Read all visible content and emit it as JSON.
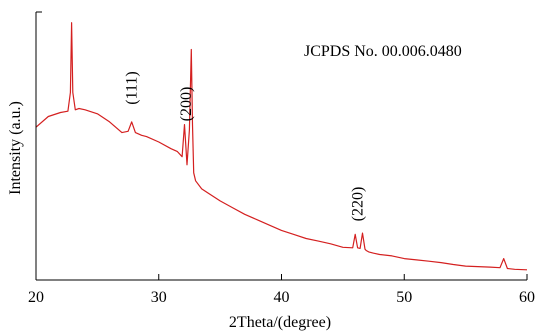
{
  "chart_data": {
    "type": "line",
    "title": "",
    "xlabel": "2Theta/(degree)",
    "ylabel": "Intensity (a.u.)",
    "xlim": [
      20,
      60
    ],
    "ylim": [
      0,
      100
    ],
    "xticks": [
      "20",
      "30",
      "40",
      "50",
      "60"
    ],
    "grid": false,
    "annotation": "JCPDS No. 00.006.0480",
    "peak_labels": [
      {
        "text": "(111)",
        "x": 27.8
      },
      {
        "text": "(200)",
        "x": 32.2
      },
      {
        "text": "(220)",
        "x": 46.2
      }
    ],
    "series": [
      {
        "color": "#d42020",
        "x": [
          20,
          21,
          22,
          22.6,
          22.8,
          22.9,
          23.0,
          23.2,
          23.5,
          24,
          25,
          26,
          27,
          27.5,
          27.8,
          28.1,
          28.6,
          29,
          30,
          31,
          31.5,
          31.9,
          32.1,
          32.3,
          32.5,
          32.65,
          32.75,
          32.85,
          33.0,
          33.5,
          34,
          35,
          36,
          37,
          38,
          39,
          40,
          41,
          42,
          43,
          44,
          45,
          45.8,
          46.0,
          46.2,
          46.4,
          46.6,
          46.8,
          46.9,
          47.1,
          47.5,
          48,
          49,
          50,
          51,
          52,
          53,
          54,
          55,
          56,
          57,
          57.8,
          58.1,
          58.4,
          59,
          60
        ],
        "y": [
          57,
          61,
          62.5,
          63,
          70,
          96,
          70,
          63.5,
          64,
          63.5,
          62,
          59,
          55,
          55.5,
          59,
          55,
          54,
          53.5,
          51.5,
          49,
          48,
          46,
          58,
          43,
          56,
          86,
          58,
          40,
          37,
          34,
          32.5,
          29.5,
          27,
          24.5,
          22.5,
          20.5,
          18.5,
          17,
          15.5,
          14.5,
          13.5,
          12.2,
          12,
          17,
          12,
          11.8,
          17.5,
          11.5,
          11,
          10.5,
          10,
          9.5,
          9,
          8,
          7.5,
          7,
          6.5,
          5.8,
          5.2,
          5,
          4.8,
          4.6,
          8,
          4.3,
          4.0,
          3.8
        ]
      }
    ]
  }
}
